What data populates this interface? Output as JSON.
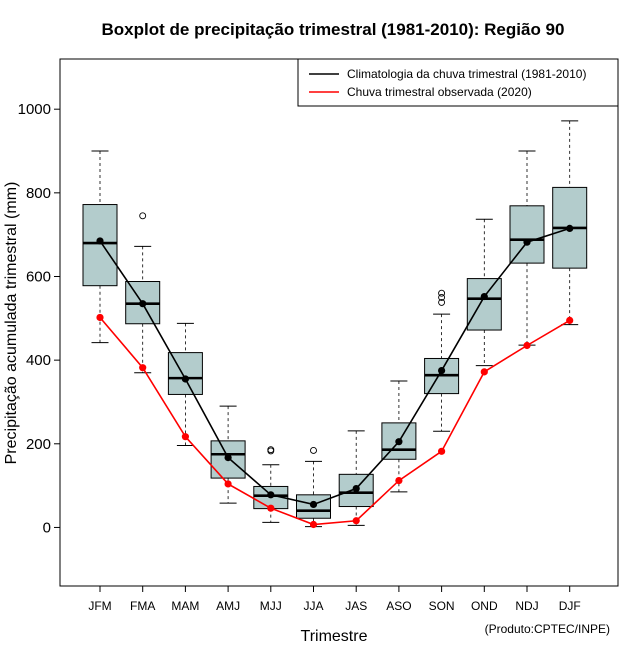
{
  "chart_data": {
    "type": "boxplot",
    "title": "Boxplot de precipitação trimestral (1981-2010): Região 90",
    "xlabel": "Trimestre",
    "ylabel": "Precipitação acumulada trimestral (mm)",
    "ylim": [
      -140,
      1120
    ],
    "yticks": [
      0,
      200,
      400,
      600,
      800,
      1000
    ],
    "credit": "(Produto:CPTEC/INPE)",
    "categories": [
      "JFM",
      "FMA",
      "MAM",
      "AMJ",
      "MJJ",
      "JJA",
      "JAS",
      "ASO",
      "SON",
      "OND",
      "NDJ",
      "DJF"
    ],
    "boxes": [
      {
        "wlo": 442,
        "q1": 578,
        "med": 680,
        "q3": 772,
        "whi": 900,
        "outliers": []
      },
      {
        "wlo": 370,
        "q1": 487,
        "med": 535,
        "q3": 588,
        "whi": 672,
        "outliers": [
          745
        ]
      },
      {
        "wlo": 196,
        "q1": 318,
        "med": 357,
        "q3": 418,
        "whi": 488,
        "outliers": []
      },
      {
        "wlo": 58,
        "q1": 118,
        "med": 175,
        "q3": 207,
        "whi": 290,
        "outliers": []
      },
      {
        "wlo": 12,
        "q1": 45,
        "med": 76,
        "q3": 98,
        "whi": 150,
        "outliers": [
          183,
          186
        ]
      },
      {
        "wlo": 2,
        "q1": 22,
        "med": 40,
        "q3": 78,
        "whi": 158,
        "outliers": [
          184
        ]
      },
      {
        "wlo": 5,
        "q1": 50,
        "med": 83,
        "q3": 127,
        "whi": 231,
        "outliers": []
      },
      {
        "wlo": 85,
        "q1": 163,
        "med": 186,
        "q3": 250,
        "whi": 350,
        "outliers": []
      },
      {
        "wlo": 230,
        "q1": 320,
        "med": 364,
        "q3": 404,
        "whi": 510,
        "outliers": [
          538,
          550,
          560
        ]
      },
      {
        "wlo": 387,
        "q1": 472,
        "med": 547,
        "q3": 595,
        "whi": 737,
        "outliers": []
      },
      {
        "wlo": 436,
        "q1": 632,
        "med": 688,
        "q3": 769,
        "whi": 900,
        "outliers": []
      },
      {
        "wlo": 485,
        "q1": 620,
        "med": 716,
        "q3": 813,
        "whi": 972,
        "outliers": []
      }
    ],
    "series": [
      {
        "name": "Climatologia da chuva trimestral (1981-2010)",
        "color": "#000000",
        "values": [
          685,
          535,
          355,
          167,
          78,
          55,
          93,
          205,
          375,
          552,
          682,
          715
        ]
      },
      {
        "name": "Chuva trimestral observada (2020)",
        "color": "#ff0000",
        "values": [
          502,
          382,
          217,
          104,
          46,
          7,
          16,
          112,
          182,
          372,
          435,
          495
        ]
      }
    ],
    "box_fill": "#b3cccc",
    "legend": "top-right"
  }
}
